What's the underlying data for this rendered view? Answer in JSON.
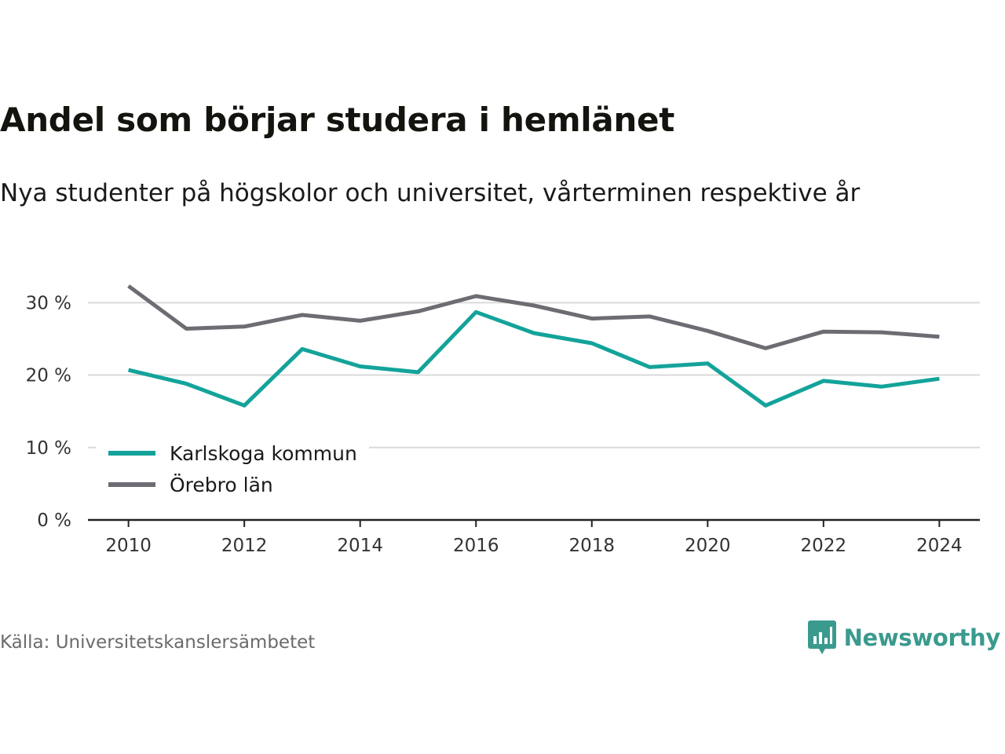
{
  "title": "Andel som börjar studera i hemlänet",
  "subtitle": "Nya studenter på högskolor och universitet, vårterminen respektive år",
  "source": "Källa: Universitetskanslersämbetet",
  "brand": {
    "name": "Newsworthy",
    "icon": "newsworthy-logo-icon",
    "color": "#3a9a8e"
  },
  "chart_data": {
    "type": "line",
    "x": [
      2010,
      2011,
      2012,
      2013,
      2014,
      2015,
      2016,
      2017,
      2018,
      2019,
      2020,
      2021,
      2022,
      2023,
      2024
    ],
    "xticks": [
      2010,
      2012,
      2014,
      2016,
      2018,
      2020,
      2022,
      2024
    ],
    "xtick_labels": [
      "2010",
      "2012",
      "2014",
      "2016",
      "2018",
      "2020",
      "2022",
      "2024"
    ],
    "yticks": [
      0,
      10,
      20,
      30
    ],
    "ytick_labels": [
      "0 %",
      "10 %",
      "20 %",
      "30 %"
    ],
    "ylim": [
      0,
      36
    ],
    "xlim": [
      2009.3,
      2024.7
    ],
    "grid": true,
    "legend_position": "bottom-left",
    "series": [
      {
        "name": "Karlskoga kommun",
        "color": "#13a39a",
        "values": [
          20.7,
          18.8,
          15.8,
          23.6,
          21.2,
          20.4,
          28.7,
          25.8,
          24.4,
          21.1,
          21.6,
          15.8,
          19.2,
          18.4,
          19.5
        ]
      },
      {
        "name": "Örebro län",
        "color": "#6e6c73",
        "values": [
          32.3,
          26.4,
          26.7,
          28.3,
          27.5,
          28.8,
          30.9,
          29.6,
          27.8,
          28.1,
          26.1,
          23.7,
          26.0,
          25.9,
          25.3
        ]
      }
    ]
  }
}
